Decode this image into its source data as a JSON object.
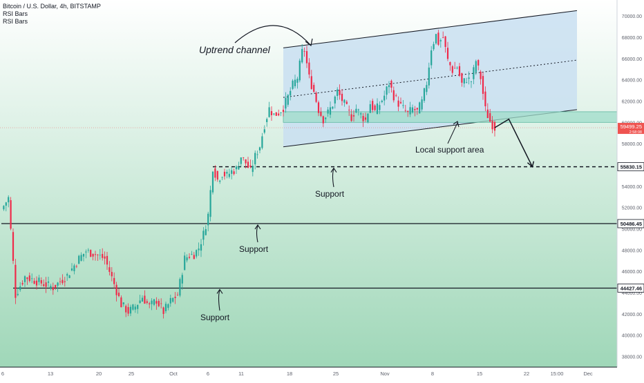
{
  "legend": {
    "title": "Bitcoin / U.S. Dollar, 4h, BITSTAMP",
    "indicator_1": "RSI Bars",
    "indicator_2": "RSI Bars"
  },
  "colors": {
    "background_top": "#ffffff",
    "background_bottom": "#9fd7b8",
    "candle_up": "#26a69a",
    "candle_down": "#ef2a4a",
    "channel_fill": "#c9dff1",
    "support_zone_fill": "#9fdcc9",
    "line": "#131722",
    "price_badge": "#ef5350"
  },
  "chart_data": {
    "type": "candlestick",
    "symbol": "Bitcoin / U.S. Dollar",
    "interval": "4h",
    "exchange": "BITSTAMP",
    "x_tick_labels": [
      "6",
      "13",
      "20",
      "25",
      "Oct",
      "6",
      "11",
      "18",
      "25",
      "Nov",
      "8",
      "15",
      "22",
      "15:00",
      "Dec"
    ],
    "y_tick_labels": [
      "38000.00",
      "40000.00",
      "42000.00",
      "44000.00",
      "46000.00",
      "48000.00",
      "50000.00",
      "52000.00",
      "54000.00",
      "56000.00",
      "58000.00",
      "60000.00",
      "62000.00",
      "64000.00",
      "66000.00",
      "68000.00",
      "70000.00"
    ],
    "ylim": [
      37000,
      71500
    ],
    "series": [
      {
        "points": [
          [
            0,
            51800
          ],
          [
            3,
            52900
          ],
          [
            6,
            43800
          ],
          [
            10,
            45500
          ],
          [
            16,
            45000
          ],
          [
            22,
            44500
          ],
          [
            28,
            45600
          ],
          [
            33,
            47200
          ],
          [
            36,
            47900
          ],
          [
            40,
            47600
          ],
          [
            44,
            47200
          ],
          [
            48,
            44800
          ],
          [
            51,
            42900
          ],
          [
            54,
            42200
          ],
          [
            57,
            42700
          ],
          [
            60,
            43600
          ],
          [
            63,
            42700
          ],
          [
            66,
            43300
          ],
          [
            69,
            42200
          ],
          [
            72,
            43200
          ],
          [
            75,
            43800
          ],
          [
            78,
            47200
          ],
          [
            80,
            47500
          ],
          [
            82,
            47600
          ],
          [
            84,
            48200
          ],
          [
            86,
            49500
          ],
          [
            88,
            51300
          ],
          [
            90,
            55800
          ],
          [
            92,
            54600
          ],
          [
            94,
            55200
          ],
          [
            96,
            55000
          ],
          [
            98,
            55400
          ],
          [
            100,
            55600
          ],
          [
            102,
            56800
          ],
          [
            104,
            56200
          ],
          [
            106,
            55400
          ],
          [
            108,
            56800
          ],
          [
            110,
            57800
          ],
          [
            112,
            59800
          ],
          [
            114,
            61300
          ],
          [
            116,
            60700
          ],
          [
            118,
            60900
          ],
          [
            120,
            61400
          ],
          [
            122,
            62400
          ],
          [
            124,
            63500
          ],
          [
            126,
            64200
          ],
          [
            128,
            66600
          ],
          [
            129,
            66800
          ],
          [
            131,
            64200
          ],
          [
            133,
            62900
          ],
          [
            135,
            61200
          ],
          [
            137,
            60300
          ],
          [
            139,
            60900
          ],
          [
            141,
            61700
          ],
          [
            143,
            62900
          ],
          [
            145,
            62100
          ],
          [
            147,
            61300
          ],
          [
            149,
            60500
          ],
          [
            151,
            61300
          ],
          [
            153,
            60700
          ],
          [
            155,
            60200
          ],
          [
            157,
            61800
          ],
          [
            159,
            61000
          ],
          [
            161,
            61700
          ],
          [
            163,
            62500
          ],
          [
            165,
            63700
          ],
          [
            167,
            62500
          ],
          [
            169,
            61800
          ],
          [
            171,
            61300
          ],
          [
            173,
            60800
          ],
          [
            175,
            61300
          ],
          [
            177,
            61000
          ],
          [
            179,
            61900
          ],
          [
            181,
            63700
          ],
          [
            183,
            67000
          ],
          [
            185,
            68200
          ],
          [
            186,
            67500
          ],
          [
            188,
            68000
          ],
          [
            190,
            65800
          ],
          [
            192,
            64900
          ],
          [
            194,
            65200
          ],
          [
            196,
            63600
          ],
          [
            198,
            64100
          ],
          [
            200,
            63900
          ],
          [
            202,
            65800
          ],
          [
            204,
            64200
          ],
          [
            206,
            61200
          ],
          [
            208,
            60100
          ],
          [
            210,
            59500
          ]
        ]
      }
    ],
    "annotations": {
      "title_text": "Uptrend channel",
      "local_support_label": "Local support area",
      "support_labels": [
        "Support",
        "Support",
        "Support"
      ],
      "support_levels": [
        55830.15,
        50486.45,
        44427.46
      ],
      "support_level_labels": [
        "55830.15",
        "50486.45",
        "44427.46"
      ],
      "current_price": 59499.25,
      "current_price_label": "59499.25",
      "current_price_sublabel": "2:58:08",
      "local_support_zone": [
        60000,
        61000
      ],
      "channel_lower": [
        [
          120,
          57700
        ],
        [
          245,
          61200
        ]
      ],
      "channel_upper": [
        [
          120,
          67000
        ],
        [
          245,
          70500
        ]
      ],
      "projected_path": [
        [
          210,
          59500
        ],
        [
          216,
          60300
        ],
        [
          226,
          55830.15
        ]
      ]
    }
  }
}
